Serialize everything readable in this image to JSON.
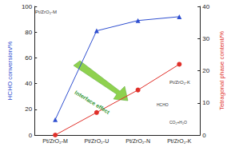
{
  "chart_data": {
    "type": "line",
    "categories": [
      "Pt/ZrO₂-M",
      "Pt/ZrO₂-U",
      "Pt/ZrO₂-N",
      "Pt/ZrO₂-K"
    ],
    "series": [
      {
        "name": "HCHO conversion/%",
        "color": "#2f4fd0",
        "marker": "triangle",
        "values": [
          12,
          81,
          89,
          92
        ]
      },
      {
        "name": "Tetragonal phase content/%",
        "color": "#e0302a",
        "marker": "circle",
        "axis": "y2",
        "values": [
          0,
          7,
          14,
          22
        ]
      }
    ],
    "ylabel": "HCHO conversion/%",
    "y2label": "Tetragonal phase content/%",
    "ylim": [
      0,
      100
    ],
    "yticks": [
      0,
      20,
      40,
      60,
      80,
      100
    ],
    "y2lim": [
      0,
      40
    ],
    "y2ticks": [
      0,
      10,
      20,
      30,
      40
    ],
    "annotations": [
      "Interface effect",
      "Pt/ZrO₂-M",
      "Pt/ZrO₂-K",
      "HCHO",
      "CO₂+H₂O"
    ],
    "grid": false
  }
}
